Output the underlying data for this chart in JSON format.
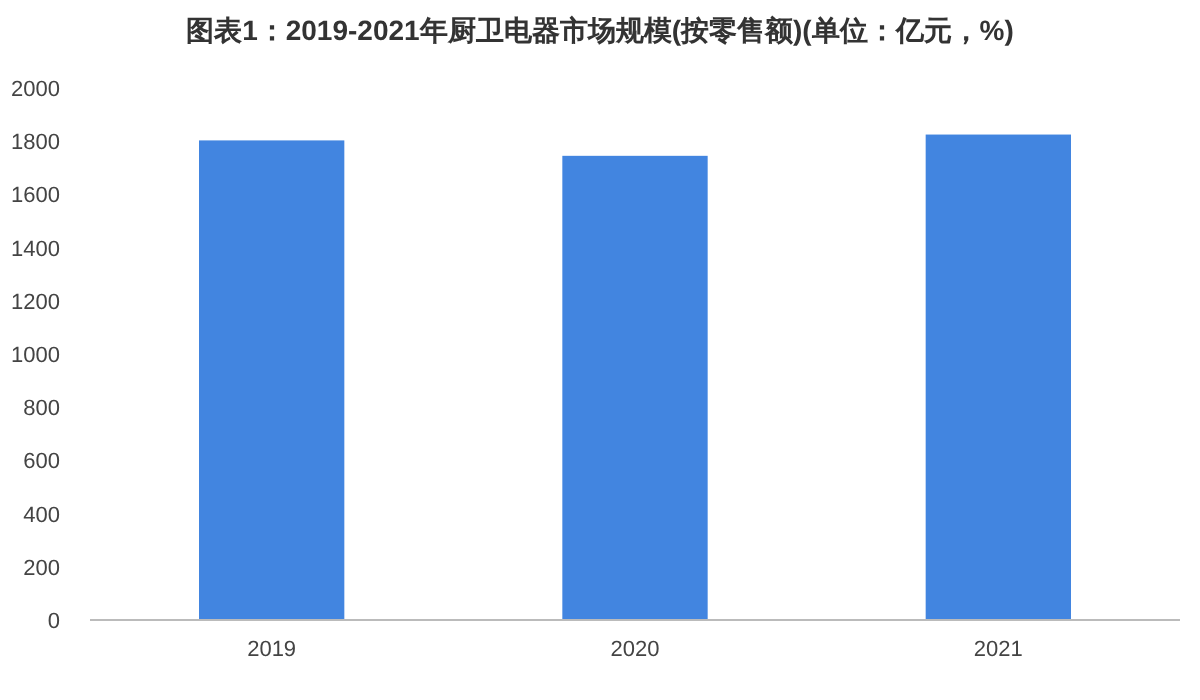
{
  "chart_data": {
    "type": "bar",
    "title": "图表1：2019-2021年厨卫电器市场规模(按零售额)(单位：亿元，%)",
    "categories": [
      "2019",
      "2020",
      "2021"
    ],
    "values": [
      1803,
      1745,
      1825
    ],
    "color": "#4285e0",
    "ylim": [
      0,
      2000
    ],
    "yticks": [
      0,
      200,
      400,
      600,
      800,
      1000,
      1200,
      1400,
      1600,
      1800,
      2000
    ],
    "grid": false
  }
}
